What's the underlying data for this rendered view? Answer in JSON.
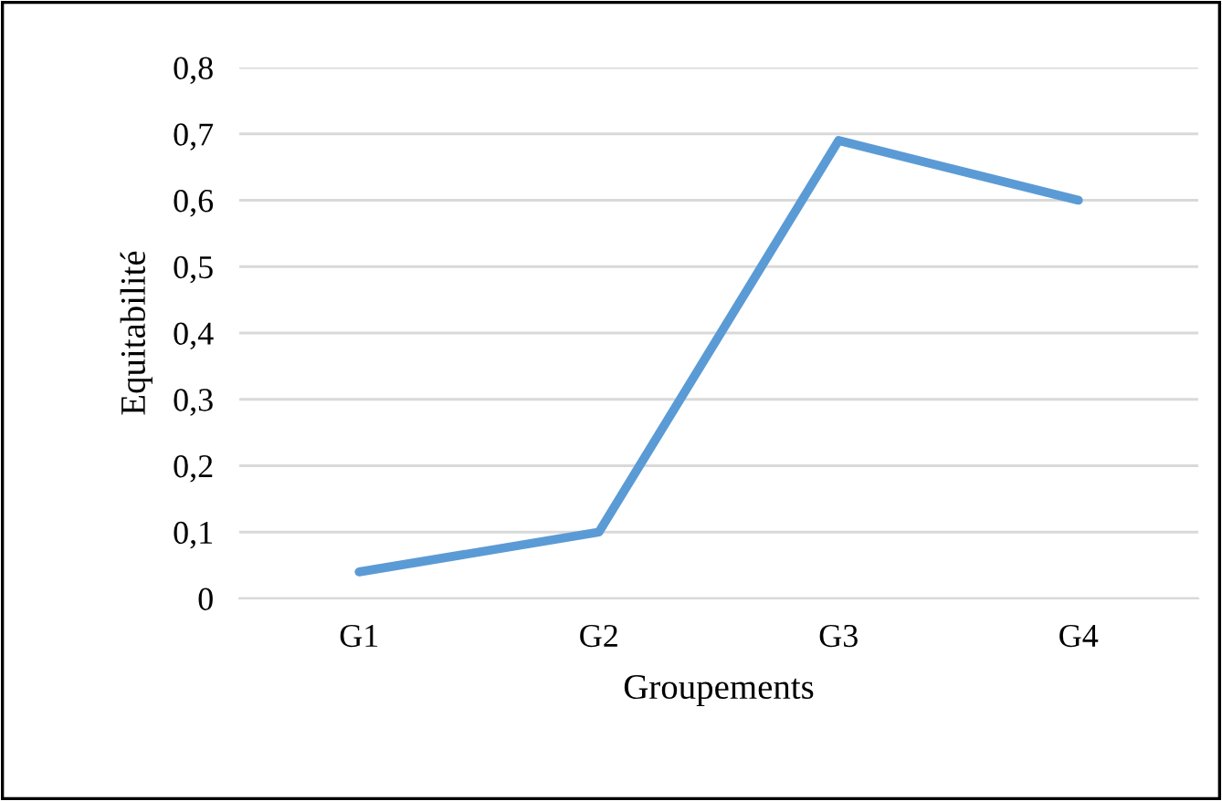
{
  "chart_data": {
    "type": "line",
    "xlabel": "Groupements",
    "ylabel": "Equitabilité",
    "categories": [
      "G1",
      "G2",
      "G3",
      "G4"
    ],
    "series": [
      {
        "color": "#5b9bd5",
        "values": [
          0.04,
          0.1,
          0.69,
          0.6
        ]
      }
    ],
    "ylim": [
      0,
      0.8
    ],
    "yticks": [
      0,
      {
        "value": 0.1,
        "label": "0,1"
      },
      {
        "value": 0.2,
        "label": "0,2"
      },
      {
        "value": 0.3,
        "label": "0,3"
      },
      {
        "value": 0.4,
        "label": "0,4"
      },
      {
        "value": 0.5,
        "label": "0,5"
      },
      {
        "value": 0.6,
        "label": "0,6"
      },
      {
        "value": 0.7,
        "label": "0,7"
      },
      {
        "value": 0.8,
        "label": "0,8"
      }
    ],
    "grid": "y",
    "marker": "none",
    "line_style": "solid"
  }
}
